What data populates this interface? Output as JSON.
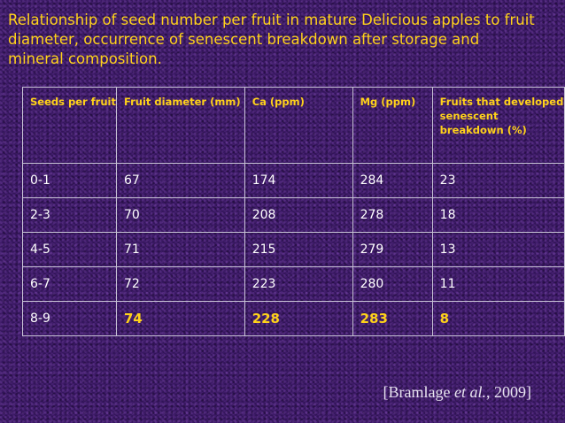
{
  "title": "Relationship of seed number per fruit in mature Delicious apples to fruit diameter, occurrence of senescent breakdown after storage and mineral composition.",
  "table": {
    "headers": [
      "Seeds per fruit",
      "Fruit diameter (mm)",
      "Ca  (ppm)",
      "Mg (ppm)",
      "Fruits that developed senescent breakdown (%)"
    ],
    "rows": [
      [
        "0-1",
        "67",
        "174",
        "284",
        "23"
      ],
      [
        "2-3",
        "70",
        "208",
        "278",
        "18"
      ],
      [
        "4-5",
        "71",
        "215",
        "279",
        "13"
      ],
      [
        "6-7",
        "72",
        "223",
        "280",
        "11"
      ],
      [
        "8-9",
        "74",
        "228",
        "283",
        "8"
      ]
    ]
  },
  "citation": {
    "open": "[Bramlage ",
    "etal": "et al.",
    "close": ", 2009]"
  },
  "colors": {
    "title": "#ffd21a",
    "highlight": "#ffd21a",
    "background": "#3a1a62",
    "cell_text": "#ffffff"
  }
}
